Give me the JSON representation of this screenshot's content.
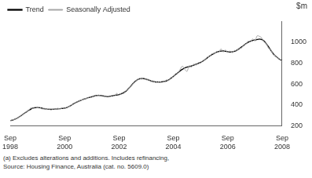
{
  "chart_data": {
    "type": "line",
    "y_label": "$m",
    "notes": [
      "(a) Excludes alterations and additions. Includes refinancing,",
      "Source: Housing Finance, Australia (cat. no. 5609.0)"
    ],
    "categories": [
      "Sep 1998",
      null,
      null,
      null,
      null,
      null,
      null,
      null,
      null,
      null,
      null,
      null,
      null,
      null,
      null,
      null,
      null,
      null,
      null,
      null,
      null,
      null,
      null,
      null,
      "Sep 2000",
      null,
      null,
      null,
      null,
      null,
      null,
      null,
      null,
      null,
      null,
      null,
      null,
      null,
      null,
      null,
      null,
      null,
      null,
      null,
      null,
      null,
      null,
      null,
      "Sep 2002",
      null,
      null,
      null,
      null,
      null,
      null,
      null,
      null,
      null,
      null,
      null,
      null,
      null,
      null,
      null,
      null,
      null,
      null,
      null,
      null,
      null,
      null,
      null,
      "Sep 2004",
      null,
      null,
      null,
      null,
      null,
      null,
      null,
      null,
      null,
      null,
      null,
      null,
      null,
      null,
      null,
      null,
      null,
      null,
      null,
      null,
      null,
      null,
      null,
      "Sep 2006",
      null,
      null,
      null,
      null,
      null,
      null,
      null,
      null,
      null,
      null,
      null,
      null,
      null,
      null,
      null,
      null,
      null,
      null,
      null,
      null,
      null,
      null,
      null,
      "Sep 2008"
    ],
    "series": [
      {
        "name": "Trend",
        "color": "#000000",
        "values": [
          250,
          255,
          262,
          272,
          285,
          300,
          315,
          330,
          345,
          358,
          368,
          373,
          375,
          372,
          368,
          363,
          360,
          358,
          357,
          358,
          360,
          362,
          364,
          366,
          368,
          375,
          385,
          397,
          410,
          422,
          433,
          442,
          450,
          458,
          465,
          472,
          478,
          484,
          488,
          490,
          488,
          485,
          482,
          480,
          482,
          486,
          490,
          494,
          498,
          505,
          515,
          530,
          550,
          575,
          600,
          622,
          638,
          648,
          652,
          650,
          645,
          638,
          630,
          624,
          620,
          618,
          618,
          620,
          624,
          630,
          640,
          655,
          672,
          690,
          708,
          725,
          740,
          752,
          760,
          766,
          772,
          780,
          788,
          796,
          805,
          818,
          833,
          850,
          866,
          880,
          892,
          902,
          910,
          914,
          915,
          912,
          908,
          905,
          906,
          912,
          922,
          936,
          952,
          968,
          984,
          998,
          1008,
          1015,
          1020,
          1025,
          1028,
          1025,
          1010,
          985,
          955,
          922,
          892,
          868,
          850,
          835,
          822
        ]
      },
      {
        "name": "Seasonally Adjusted",
        "color": "#a6a6a6",
        "values": [
          248,
          258,
          260,
          275,
          283,
          305,
          312,
          335,
          342,
          370,
          365,
          380,
          372,
          378,
          360,
          368,
          355,
          362,
          350,
          362,
          358,
          368,
          360,
          372,
          365,
          380,
          382,
          400,
          405,
          428,
          430,
          445,
          447,
          462,
          460,
          478,
          470,
          490,
          482,
          495,
          484,
          490,
          478,
          485,
          476,
          492,
          485,
          510,
          490,
          512,
          508,
          535,
          545,
          580,
          598,
          630,
          632,
          655,
          645,
          660,
          638,
          645,
          622,
          632,
          612,
          625,
          612,
          628,
          618,
          640,
          632,
          665,
          665,
          700,
          700,
          740,
          770,
          740,
          720,
          775,
          760,
          790,
          780,
          805,
          798,
          825,
          828,
          860,
          858,
          890,
          885,
          912,
          900,
          935,
          905,
          925,
          900,
          915,
          898,
          920,
          915,
          945,
          940,
          975,
          978,
          1010,
          1000,
          1030,
          1010,
          1060,
          1055,
          1040,
          1000,
          990,
          940,
          930,
          880,
          872,
          845,
          840,
          815
        ]
      }
    ],
    "ylim": [
      200,
      1200
    ],
    "yticks": [
      200,
      400,
      600,
      800,
      1000
    ],
    "grid": false,
    "legend": "upper left"
  }
}
